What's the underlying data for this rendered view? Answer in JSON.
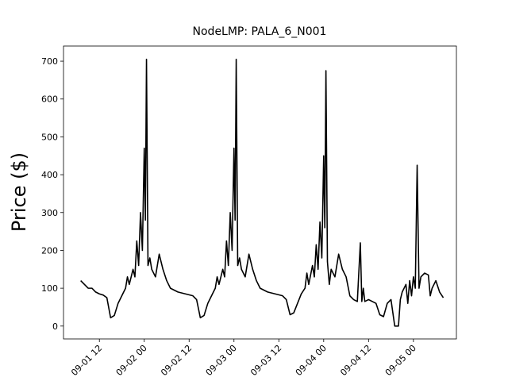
{
  "chart_data": {
    "type": "line",
    "title": "NodeLMP: PALA_6_N001",
    "y_label": "Price ($)",
    "color": "#000000",
    "x": [
      7,
      8,
      9,
      10,
      11,
      12,
      13,
      14,
      15,
      16,
      17,
      18,
      19,
      19.5,
      20,
      21,
      21.5,
      22,
      22.5,
      23,
      23.5,
      24,
      24.3,
      24.6,
      25,
      25.5,
      26,
      27,
      28,
      29,
      30,
      31,
      33,
      35,
      37,
      38,
      39,
      40,
      41,
      42,
      43,
      43.5,
      44,
      45,
      45.5,
      46,
      46.5,
      47,
      47.5,
      48,
      48.3,
      48.6,
      49,
      49.5,
      50,
      51,
      52,
      53,
      54,
      55,
      57,
      59,
      61,
      62,
      63,
      64,
      65,
      66,
      67,
      67.5,
      68,
      69,
      69.5,
      70,
      70.5,
      71,
      71.5,
      72,
      72.3,
      72.6,
      73,
      73.5,
      74,
      75,
      76,
      77,
      78,
      79,
      80,
      81,
      81.8,
      82.2,
      82.6,
      83,
      84,
      85,
      86,
      87,
      88,
      89,
      90,
      91,
      92,
      92.5,
      93,
      94,
      94.5,
      95,
      95.5,
      96,
      96.5,
      97,
      97.5,
      98,
      99,
      100,
      100.5,
      101,
      102,
      103,
      104
    ],
    "values": [
      120,
      110,
      100,
      100,
      90,
      85,
      82,
      75,
      22,
      28,
      60,
      80,
      100,
      130,
      110,
      150,
      130,
      225,
      160,
      300,
      200,
      470,
      280,
      705,
      160,
      180,
      150,
      130,
      190,
      150,
      120,
      100,
      90,
      85,
      80,
      70,
      22,
      28,
      60,
      80,
      100,
      130,
      110,
      150,
      130,
      225,
      160,
      300,
      200,
      470,
      280,
      705,
      160,
      180,
      150,
      130,
      190,
      150,
      120,
      100,
      90,
      85,
      80,
      70,
      30,
      35,
      60,
      85,
      100,
      140,
      110,
      160,
      130,
      215,
      150,
      275,
      180,
      450,
      260,
      675,
      170,
      110,
      150,
      130,
      190,
      150,
      130,
      80,
      70,
      65,
      220,
      65,
      100,
      65,
      70,
      65,
      60,
      30,
      25,
      60,
      70,
      0,
      0,
      70,
      90,
      110,
      60,
      120,
      80,
      130,
      100,
      425,
      100,
      130,
      140,
      135,
      80,
      100,
      120,
      90,
      75
    ],
    "xlim": [
      2.4,
      107.5
    ],
    "xticks": [
      {
        "value": 12,
        "label": "09-01 12"
      },
      {
        "value": 24,
        "label": "09-02 00"
      },
      {
        "value": 36,
        "label": "09-02 12"
      },
      {
        "value": 48,
        "label": "09-03 00"
      },
      {
        "value": 60,
        "label": "09-03 12"
      },
      {
        "value": 72,
        "label": "09-04 00"
      },
      {
        "value": 84,
        "label": "09-04 12"
      },
      {
        "value": 96,
        "label": "09-05 00"
      }
    ],
    "ylim": [
      -34,
      740
    ],
    "yticks": [
      0,
      100,
      200,
      300,
      400,
      500,
      600,
      700
    ]
  }
}
